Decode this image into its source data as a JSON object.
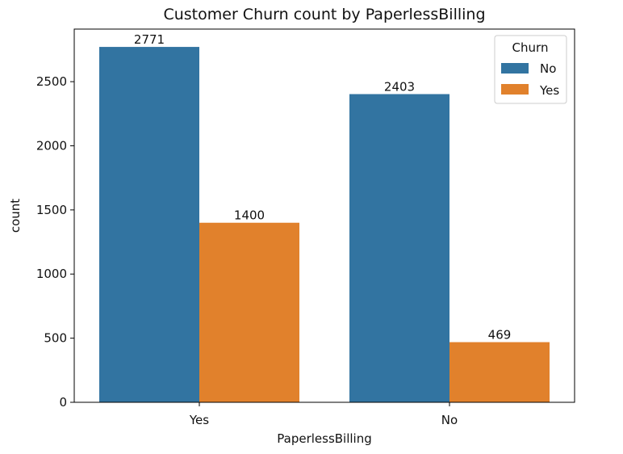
{
  "chart_data": {
    "type": "bar",
    "title": "Customer Churn count by PaperlessBilling",
    "xlabel": "PaperlessBilling",
    "ylabel": "count",
    "categories": [
      "Yes",
      "No"
    ],
    "series": [
      {
        "name": "No",
        "values": [
          2771,
          2403
        ],
        "color": "#3274a1"
      },
      {
        "name": "Yes",
        "values": [
          1400,
          469
        ],
        "color": "#e1812c"
      }
    ],
    "ylim": [
      0,
      2910
    ],
    "yticks": [
      0,
      500,
      1000,
      1500,
      2000,
      2500
    ],
    "legend": {
      "title": "Churn",
      "position": "top-right"
    },
    "grid": false
  }
}
